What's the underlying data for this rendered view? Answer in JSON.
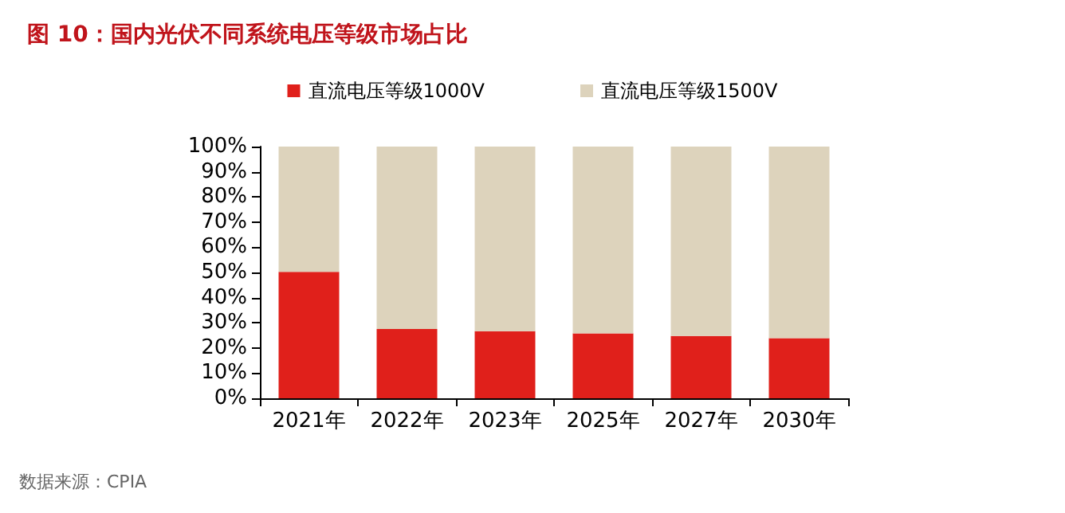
{
  "chart_data": {
    "type": "bar",
    "title": "图 10：国内光伏不同系统电压等级市场占比",
    "categories": [
      "2021年",
      "2022年",
      "2023年",
      "2025年",
      "2027年",
      "2030年"
    ],
    "series": [
      {
        "name": "直流电压等级1000V",
        "color": "#e0201b",
        "values": [
          50.2,
          27.5,
          26.7,
          25.8,
          24.8,
          23.9
        ]
      },
      {
        "name": "直流电压等级1500V",
        "color": "#ddd3bc",
        "values": [
          49.8,
          72.5,
          73.3,
          74.2,
          75.2,
          76.1
        ]
      }
    ],
    "stacked": true,
    "ylim": [
      0,
      100
    ],
    "yticks": [
      {
        "value": 0,
        "label": "0%"
      },
      {
        "value": 10,
        "label": "10%"
      },
      {
        "value": 20,
        "label": "20%"
      },
      {
        "value": 30,
        "label": "30%"
      },
      {
        "value": 40,
        "label": "40%"
      },
      {
        "value": 50,
        "label": "50%"
      },
      {
        "value": 60,
        "label": "60%"
      },
      {
        "value": 70,
        "label": "70%"
      },
      {
        "value": 80,
        "label": "80%"
      },
      {
        "value": 90,
        "label": "90%"
      },
      {
        "value": 100,
        "label": "100%"
      }
    ],
    "legend": "top",
    "grid": false,
    "annotations": [
      "数据来源：CPIA"
    ]
  }
}
